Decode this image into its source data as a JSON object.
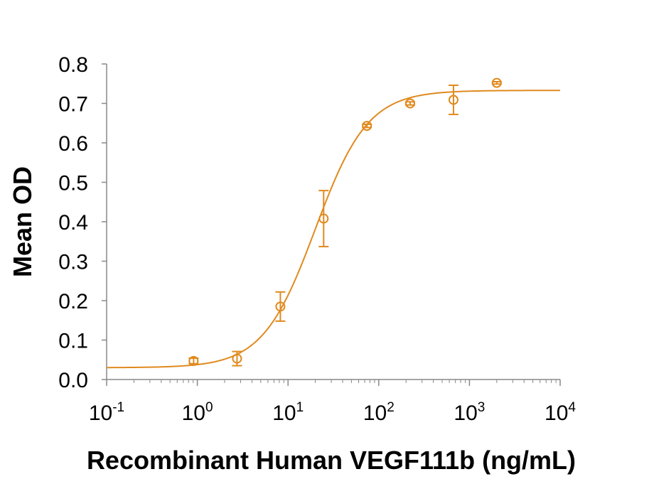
{
  "chart_data": {
    "type": "scatter",
    "title": "",
    "xlabel": "Recombinant Human VEGF111b (ng/mL)",
    "ylabel": "Mean OD",
    "x_scale": "log",
    "xlim": [
      0.1,
      10000
    ],
    "ylim": [
      0.0,
      0.8
    ],
    "grid": false,
    "y_ticks": [
      "0.0",
      "0.1",
      "0.2",
      "0.3",
      "0.4",
      "0.5",
      "0.6",
      "0.7",
      "0.8"
    ],
    "x_ticks": [
      {
        "base": "10",
        "exp": "-1"
      },
      {
        "base": "10",
        "exp": "0"
      },
      {
        "base": "10",
        "exp": "1"
      },
      {
        "base": "10",
        "exp": "2"
      },
      {
        "base": "10",
        "exp": "3"
      },
      {
        "base": "10",
        "exp": "4"
      }
    ],
    "color": "#E08A1E",
    "series": [
      {
        "points": [
          {
            "x": 0.91,
            "y": 0.047,
            "err": 0.007
          },
          {
            "x": 2.74,
            "y": 0.053,
            "err": 0.018
          },
          {
            "x": 8.23,
            "y": 0.185,
            "err": 0.037
          },
          {
            "x": 24.7,
            "y": 0.408,
            "err": 0.071
          },
          {
            "x": 74.1,
            "y": 0.643,
            "err": 0.004
          },
          {
            "x": 222,
            "y": 0.7,
            "err": 0.004
          },
          {
            "x": 667,
            "y": 0.709,
            "err": 0.037
          },
          {
            "x": 2000,
            "y": 0.752,
            "err": 0.003
          }
        ],
        "fit": {
          "model": "4PL",
          "bottom": 0.03,
          "top": 0.733,
          "ec50": 20,
          "hill": 1.5
        }
      }
    ]
  }
}
